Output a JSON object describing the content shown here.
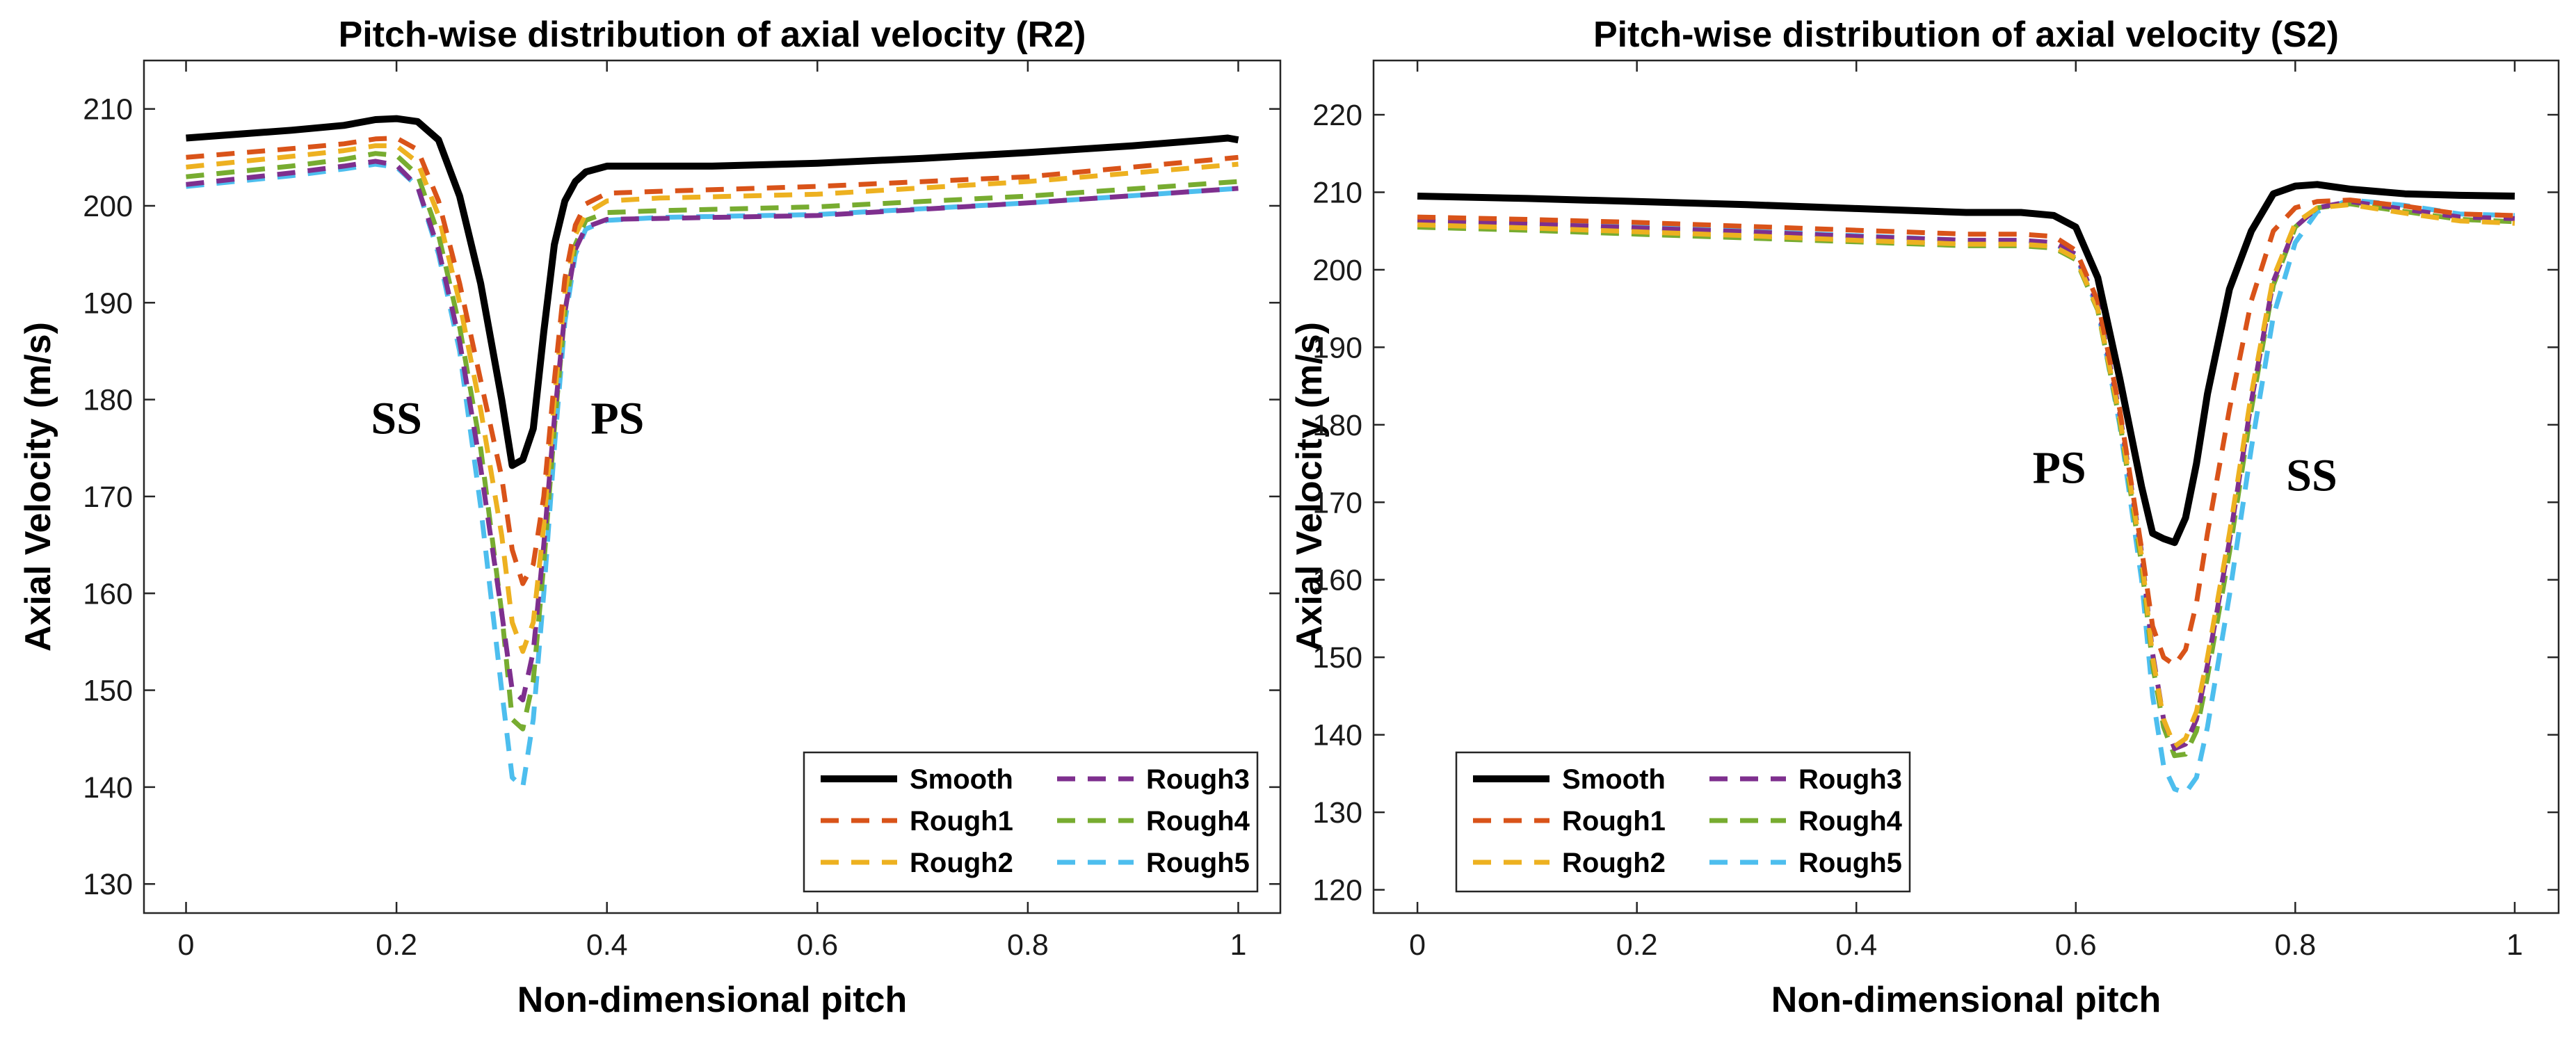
{
  "chart_data": [
    {
      "type": "line",
      "title": "Pitch-wise distribution of axial velocity (R2)",
      "xlabel": "Non-dimensional pitch",
      "ylabel": "Axial Velocity (m/s)",
      "xlim": [
        -0.04,
        1.04
      ],
      "ylim": [
        127,
        215
      ],
      "xticks": [
        0,
        0.2,
        0.4,
        0.6,
        0.8,
        1
      ],
      "xtick_labels": [
        "0",
        "0.2",
        "0.4",
        "0.6",
        "0.8",
        "1"
      ],
      "yticks": [
        130,
        140,
        150,
        160,
        170,
        180,
        190,
        200,
        210
      ],
      "ytick_labels": [
        "130",
        "140",
        "150",
        "160",
        "170",
        "180",
        "190",
        "200",
        "210"
      ],
      "grid": false,
      "legend_position": "bottom-right",
      "annotations": [
        {
          "text": "SS",
          "x": 0.2,
          "y": 176.5
        },
        {
          "text": "PS",
          "x": 0.41,
          "y": 176.5
        }
      ],
      "series": [
        {
          "name": "Smooth",
          "color": "#000000",
          "style": "solid",
          "x": [
            0,
            0.05,
            0.1,
            0.15,
            0.18,
            0.2,
            0.22,
            0.24,
            0.26,
            0.28,
            0.3,
            0.31,
            0.32,
            0.33,
            0.34,
            0.35,
            0.36,
            0.37,
            0.38,
            0.4,
            0.42,
            0.45,
            0.5,
            0.6,
            0.7,
            0.8,
            0.9,
            0.97,
            0.99,
            1
          ],
          "y": [
            207,
            207.4,
            207.8,
            208.3,
            208.9,
            209,
            208.7,
            206.8,
            201,
            192,
            180,
            173.2,
            173.8,
            177,
            187,
            196,
            200.5,
            202.5,
            203.5,
            204.1,
            204.1,
            204.1,
            204.1,
            204.4,
            204.9,
            205.5,
            206.2,
            206.8,
            207,
            206.8
          ]
        },
        {
          "name": "Rough1",
          "color": "#D95319",
          "style": "dashed",
          "x": [
            0,
            0.1,
            0.15,
            0.18,
            0.2,
            0.22,
            0.24,
            0.26,
            0.28,
            0.3,
            0.31,
            0.32,
            0.33,
            0.34,
            0.35,
            0.36,
            0.37,
            0.38,
            0.4,
            0.45,
            0.6,
            0.8,
            1
          ],
          "y": [
            205,
            205.9,
            206.4,
            206.9,
            207,
            205.8,
            200.5,
            192,
            182,
            172,
            164.5,
            161,
            163,
            170,
            182,
            192.5,
            198,
            200.2,
            201.3,
            201.5,
            202,
            203,
            205
          ]
        },
        {
          "name": "Rough2",
          "color": "#EDB120",
          "style": "dashed",
          "x": [
            0,
            0.1,
            0.15,
            0.18,
            0.2,
            0.22,
            0.24,
            0.26,
            0.28,
            0.3,
            0.31,
            0.32,
            0.33,
            0.34,
            0.35,
            0.36,
            0.37,
            0.38,
            0.4,
            0.45,
            0.6,
            0.8,
            1
          ],
          "y": [
            204,
            205.1,
            205.7,
            206.2,
            206.2,
            204.5,
            199,
            190,
            179,
            166,
            157,
            154,
            157,
            167,
            180,
            191,
            197,
            199.2,
            200.5,
            200.8,
            201.2,
            202.5,
            204.3
          ]
        },
        {
          "name": "Rough3",
          "color": "#7E2F8E",
          "style": "dashed",
          "x": [
            0,
            0.1,
            0.15,
            0.18,
            0.2,
            0.22,
            0.24,
            0.26,
            0.28,
            0.3,
            0.31,
            0.32,
            0.33,
            0.34,
            0.35,
            0.36,
            0.37,
            0.38,
            0.4,
            0.45,
            0.6,
            0.8,
            1
          ],
          "y": [
            202.2,
            203.4,
            204.1,
            204.6,
            204.2,
            202,
            195.5,
            186,
            173,
            158,
            150,
            149,
            154,
            165,
            178,
            189,
            195.5,
            197.8,
            198.6,
            198.7,
            199,
            200.3,
            201.8
          ]
        },
        {
          "name": "Rough4",
          "color": "#77AC30",
          "style": "dashed",
          "x": [
            0,
            0.1,
            0.15,
            0.18,
            0.2,
            0.22,
            0.24,
            0.26,
            0.28,
            0.3,
            0.31,
            0.32,
            0.33,
            0.34,
            0.35,
            0.36,
            0.37,
            0.38,
            0.4,
            0.45,
            0.6,
            0.8,
            1
          ],
          "y": [
            203,
            204.1,
            204.8,
            205.4,
            205.2,
            203.2,
            197,
            187.5,
            175,
            158,
            147,
            146,
            151,
            163,
            177,
            189,
            196,
            198.5,
            199.3,
            199.5,
            199.9,
            201,
            202.5
          ]
        },
        {
          "name": "Rough5",
          "color": "#4DBEEE",
          "style": "dashed",
          "x": [
            0,
            0.1,
            0.15,
            0.18,
            0.2,
            0.22,
            0.24,
            0.26,
            0.28,
            0.3,
            0.31,
            0.32,
            0.33,
            0.34,
            0.35,
            0.36,
            0.37,
            0.38,
            0.4,
            0.45,
            0.6,
            0.8,
            1
          ],
          "y": [
            202,
            203.1,
            203.8,
            204.3,
            204,
            202,
            195,
            185,
            169,
            150,
            141,
            140,
            147,
            160,
            175,
            188,
            195,
            197.6,
            198.5,
            198.8,
            199.1,
            200.3,
            201.8
          ]
        }
      ]
    },
    {
      "type": "line",
      "title": "Pitch-wise distribution of axial velocity (S2)",
      "xlabel": "Non-dimensional pitch",
      "ylabel": "Axial Velocity (m/s)",
      "xlim": [
        -0.04,
        1.04
      ],
      "ylim": [
        117,
        227
      ],
      "xticks": [
        0,
        0.2,
        0.4,
        0.6,
        0.8,
        1
      ],
      "xtick_labels": [
        "0",
        "0.2",
        "0.4",
        "0.6",
        "0.8",
        "1"
      ],
      "yticks": [
        120,
        130,
        140,
        150,
        160,
        170,
        180,
        190,
        200,
        210,
        220
      ],
      "ytick_labels": [
        "120",
        "130",
        "140",
        "150",
        "160",
        "170",
        "180",
        "190",
        "200",
        "210",
        "220"
      ],
      "grid": false,
      "legend_position": "bottom-left",
      "annotations": [
        {
          "text": "PS",
          "x": 0.585,
          "y": 172.5
        },
        {
          "text": "SS",
          "x": 0.815,
          "y": 171.5
        }
      ],
      "series": [
        {
          "name": "Smooth",
          "color": "#000000",
          "style": "solid",
          "x": [
            0,
            0.1,
            0.2,
            0.3,
            0.4,
            0.5,
            0.55,
            0.58,
            0.6,
            0.62,
            0.64,
            0.66,
            0.67,
            0.68,
            0.69,
            0.7,
            0.71,
            0.72,
            0.74,
            0.76,
            0.78,
            0.8,
            0.82,
            0.85,
            0.9,
            0.95,
            1
          ],
          "y": [
            209.5,
            209.2,
            208.8,
            208.4,
            207.9,
            207.4,
            207.4,
            207,
            205.5,
            199,
            186,
            172,
            166,
            165.3,
            164.8,
            168,
            175,
            184,
            197.5,
            205,
            209.8,
            210.8,
            211,
            210.4,
            209.8,
            209.6,
            209.5
          ]
        },
        {
          "name": "Rough1",
          "color": "#D95319",
          "style": "dashed",
          "x": [
            0,
            0.1,
            0.2,
            0.3,
            0.4,
            0.5,
            0.55,
            0.58,
            0.6,
            0.62,
            0.64,
            0.66,
            0.67,
            0.68,
            0.69,
            0.7,
            0.71,
            0.72,
            0.74,
            0.76,
            0.78,
            0.8,
            0.82,
            0.85,
            0.9,
            0.95,
            1
          ],
          "y": [
            206.8,
            206.5,
            206.1,
            205.6,
            205.1,
            204.6,
            204.6,
            204.3,
            202.5,
            196,
            182,
            164,
            154,
            150,
            149,
            151,
            157,
            166,
            182,
            196,
            205,
            208,
            208.8,
            209,
            208.2,
            207.2,
            207
          ]
        },
        {
          "name": "Rough2",
          "color": "#EDB120",
          "style": "dashed",
          "x": [
            0,
            0.1,
            0.2,
            0.3,
            0.4,
            0.5,
            0.55,
            0.58,
            0.6,
            0.62,
            0.64,
            0.66,
            0.67,
            0.68,
            0.69,
            0.7,
            0.71,
            0.72,
            0.74,
            0.76,
            0.78,
            0.8,
            0.82,
            0.85,
            0.9,
            0.95,
            1
          ],
          "y": [
            205.8,
            205.4,
            204.9,
            204.4,
            203.8,
            203.3,
            203.3,
            203,
            201.5,
            195,
            181,
            163,
            150,
            142,
            138.5,
            139.5,
            143,
            150,
            166,
            184,
            199,
            206,
            208,
            208.4,
            207.3,
            206.3,
            206
          ]
        },
        {
          "name": "Rough3",
          "color": "#7E2F8E",
          "style": "dashed",
          "x": [
            0,
            0.1,
            0.2,
            0.3,
            0.4,
            0.5,
            0.55,
            0.58,
            0.6,
            0.62,
            0.64,
            0.66,
            0.67,
            0.68,
            0.69,
            0.7,
            0.71,
            0.72,
            0.74,
            0.76,
            0.78,
            0.8,
            0.82,
            0.85,
            0.9,
            0.95,
            1
          ],
          "y": [
            206.3,
            205.9,
            205.4,
            204.9,
            204.3,
            203.8,
            203.8,
            203.5,
            202,
            195.5,
            181.5,
            163.5,
            150.5,
            142,
            138.2,
            138.8,
            142,
            149,
            165,
            183,
            198.5,
            205.5,
            208,
            208.8,
            207.8,
            206.8,
            206.6
          ]
        },
        {
          "name": "Rough4",
          "color": "#77AC30",
          "style": "dashed",
          "x": [
            0,
            0.1,
            0.2,
            0.3,
            0.4,
            0.5,
            0.55,
            0.58,
            0.6,
            0.62,
            0.64,
            0.66,
            0.67,
            0.68,
            0.69,
            0.7,
            0.71,
            0.72,
            0.74,
            0.76,
            0.78,
            0.8,
            0.82,
            0.85,
            0.9,
            0.95,
            1
          ],
          "y": [
            205.5,
            205.1,
            204.6,
            204.1,
            203.6,
            203.1,
            203.1,
            202.8,
            201.3,
            194.8,
            180.5,
            162,
            149,
            141,
            137.3,
            137.5,
            140.5,
            147.5,
            163.5,
            182,
            198,
            205.5,
            208,
            208.5,
            207.5,
            206.5,
            206.2
          ]
        },
        {
          "name": "Rough5",
          "color": "#4DBEEE",
          "style": "dashed",
          "x": [
            0,
            0.1,
            0.2,
            0.3,
            0.4,
            0.5,
            0.55,
            0.58,
            0.6,
            0.62,
            0.64,
            0.66,
            0.67,
            0.68,
            0.69,
            0.7,
            0.71,
            0.72,
            0.74,
            0.76,
            0.78,
            0.8,
            0.82,
            0.85,
            0.9,
            0.95,
            1
          ],
          "y": [
            206.5,
            206,
            205.5,
            205,
            204.4,
            203.8,
            203.8,
            203.4,
            201.8,
            195,
            180,
            160,
            145,
            136,
            133,
            132.5,
            134.5,
            141,
            158,
            177,
            194,
            203.5,
            207.5,
            209,
            208.3,
            207.2,
            207
          ]
        }
      ]
    }
  ]
}
